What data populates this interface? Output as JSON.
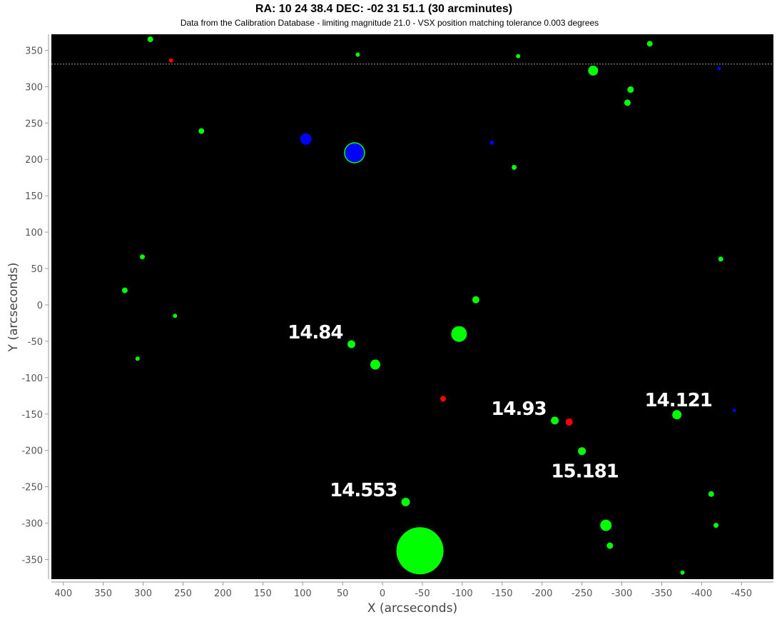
{
  "chart_data": {
    "type": "scatter",
    "title": "RA: 10 24 38.4  DEC: -02 31 51.1 (30 arcminutes)",
    "subtitle": "Data from the Calibration Database - limiting magnitude 21.0 - VSX position matching tolerance 0.003 degrees",
    "xlabel": "X (arcseconds)",
    "ylabel": "Y (arcseconds)",
    "xlim": [
      415,
      -490
    ],
    "ylim": [
      -377,
      372
    ],
    "x_reversed": true,
    "xticks": [
      400,
      350,
      300,
      250,
      200,
      150,
      100,
      50,
      0,
      -50,
      -100,
      -150,
      -200,
      -250,
      -300,
      -350,
      -400,
      -450
    ],
    "yticks": [
      350,
      300,
      250,
      200,
      150,
      100,
      50,
      0,
      -50,
      -100,
      -150,
      -200,
      -250,
      -300,
      -350
    ],
    "grid": false,
    "background": "#000000",
    "colors": {
      "green": "#00ff00",
      "blue": "#0000ff",
      "red": "#ff0000",
      "reference_line": "#aaaaaa"
    },
    "reference_line_y": 331,
    "points": [
      {
        "x": 291,
        "y": 365,
        "size": 4,
        "color": "green"
      },
      {
        "x": 265,
        "y": 336,
        "size": 3,
        "color": "red"
      },
      {
        "x": 31,
        "y": 344,
        "size": 3,
        "color": "green"
      },
      {
        "x": -170,
        "y": 342,
        "size": 3,
        "color": "green"
      },
      {
        "x": -335,
        "y": 359,
        "size": 4,
        "color": "green"
      },
      {
        "x": -264,
        "y": 322,
        "size": 7,
        "color": "green"
      },
      {
        "x": -311,
        "y": 296,
        "size": 4.5,
        "color": "green"
      },
      {
        "x": -307,
        "y": 278,
        "size": 4.5,
        "color": "green"
      },
      {
        "x": -422,
        "y": 325,
        "size": 2.5,
        "color": "blue"
      },
      {
        "x": 227,
        "y": 239,
        "size": 4,
        "color": "green"
      },
      {
        "x": 96,
        "y": 228,
        "size": 8,
        "color": "blue"
      },
      {
        "x": 35,
        "y": 209,
        "size": 14,
        "color": "blue",
        "outline": "green"
      },
      {
        "x": -137,
        "y": 223,
        "size": 3,
        "color": "blue"
      },
      {
        "x": -165,
        "y": 189,
        "size": 3.5,
        "color": "green"
      },
      {
        "x": 301,
        "y": 66,
        "size": 3.5,
        "color": "green"
      },
      {
        "x": 323,
        "y": 20,
        "size": 4,
        "color": "green"
      },
      {
        "x": 260,
        "y": -15,
        "size": 3,
        "color": "green"
      },
      {
        "x": 307,
        "y": -74,
        "size": 3,
        "color": "green"
      },
      {
        "x": -424,
        "y": 63,
        "size": 3.5,
        "color": "green"
      },
      {
        "x": -117,
        "y": 7,
        "size": 5,
        "color": "green"
      },
      {
        "x": -96,
        "y": -40,
        "size": 11,
        "color": "green"
      },
      {
        "x": 39,
        "y": -54,
        "size": 5.5,
        "color": "green",
        "label": "14.84"
      },
      {
        "x": 9,
        "y": -82,
        "size": 7,
        "color": "green"
      },
      {
        "x": -76,
        "y": -129,
        "size": 4,
        "color": "red"
      },
      {
        "x": -216,
        "y": -159,
        "size": 5.5,
        "color": "green",
        "label": "14.93"
      },
      {
        "x": -234,
        "y": -161,
        "size": 5,
        "color": "red"
      },
      {
        "x": -369,
        "y": -151,
        "size": 6.5,
        "color": "green",
        "label": "14.121"
      },
      {
        "x": -441,
        "y": -145,
        "size": 2.5,
        "color": "blue"
      },
      {
        "x": -250,
        "y": -201,
        "size": 5.5,
        "color": "green",
        "label": "15.181"
      },
      {
        "x": -29,
        "y": -271,
        "size": 6,
        "color": "green",
        "label": "14.553"
      },
      {
        "x": -412,
        "y": -260,
        "size": 4,
        "color": "green"
      },
      {
        "x": -418,
        "y": -303,
        "size": 3.5,
        "color": "green"
      },
      {
        "x": -280,
        "y": -303,
        "size": 8,
        "color": "green"
      },
      {
        "x": -285,
        "y": -331,
        "size": 4.5,
        "color": "green"
      },
      {
        "x": -47,
        "y": -338,
        "size": 33,
        "color": "green"
      },
      {
        "x": -376,
        "y": -368,
        "size": 3,
        "color": "green"
      }
    ]
  }
}
